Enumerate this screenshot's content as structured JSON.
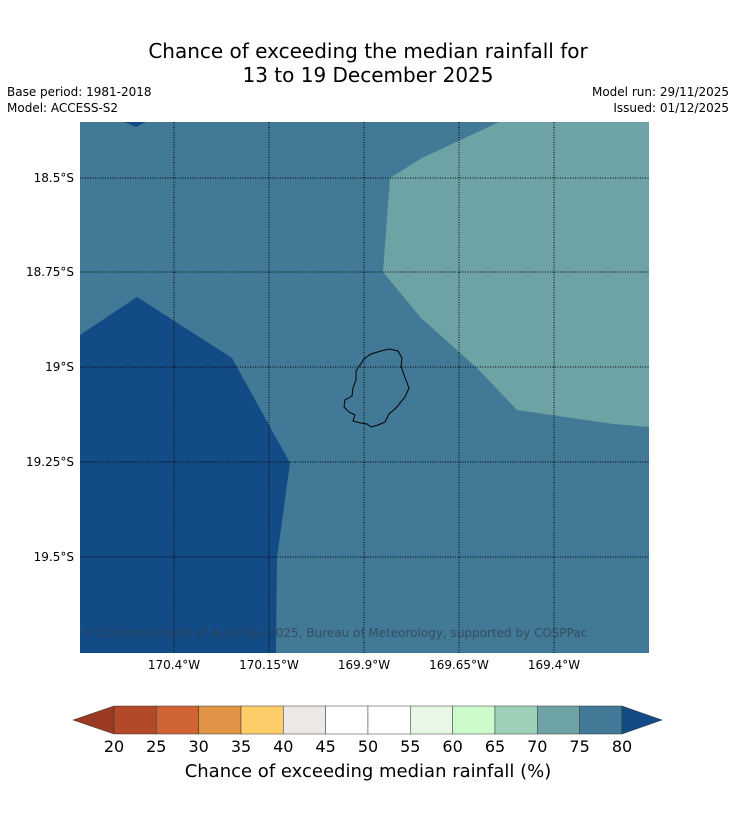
{
  "title": {
    "line1": "Chance of exceeding the median rainfall for",
    "line2": "13 to 19 December 2025"
  },
  "meta": {
    "base_period": "Base period: 1981-2018",
    "model": "Model: ACCESS-S2",
    "model_run": "Model run: 29/11/2025",
    "issued": "Issued: 01/12/2025"
  },
  "map": {
    "copyright": "© Commonwealth of Australia 2025, Bureau of Meteorology, supported by COSPPac",
    "lat_labels": [
      "18.5°S",
      "18.75°S",
      "19°S",
      "19.25°S",
      "19.5°S"
    ],
    "lon_labels": [
      "170.4°W",
      "170.15°W",
      "169.9°W",
      "169.65°W",
      "169.4°W"
    ],
    "zones": [
      {
        "category": "80+",
        "color": "#134b86"
      },
      {
        "category": "75-80",
        "color": "#427997"
      },
      {
        "category": "70-75",
        "color": "#6ea3a5"
      }
    ],
    "land_outline_color": "#000000"
  },
  "colorbar": {
    "title": "Chance of exceeding median rainfall (%)",
    "ticks": [
      "20",
      "25",
      "30",
      "35",
      "40",
      "45",
      "50",
      "55",
      "60",
      "65",
      "70",
      "75",
      "80"
    ],
    "under_color": "#9b3a23",
    "over_color": "#134b86",
    "colors": [
      "#b24a29",
      "#d06533",
      "#e19446",
      "#fdcd6a",
      "#ede8e4",
      "#ffffff",
      "#ffffff",
      "#e9f7e7",
      "#ccfacb",
      "#9cd1b8",
      "#6ea3a5",
      "#427997"
    ]
  }
}
